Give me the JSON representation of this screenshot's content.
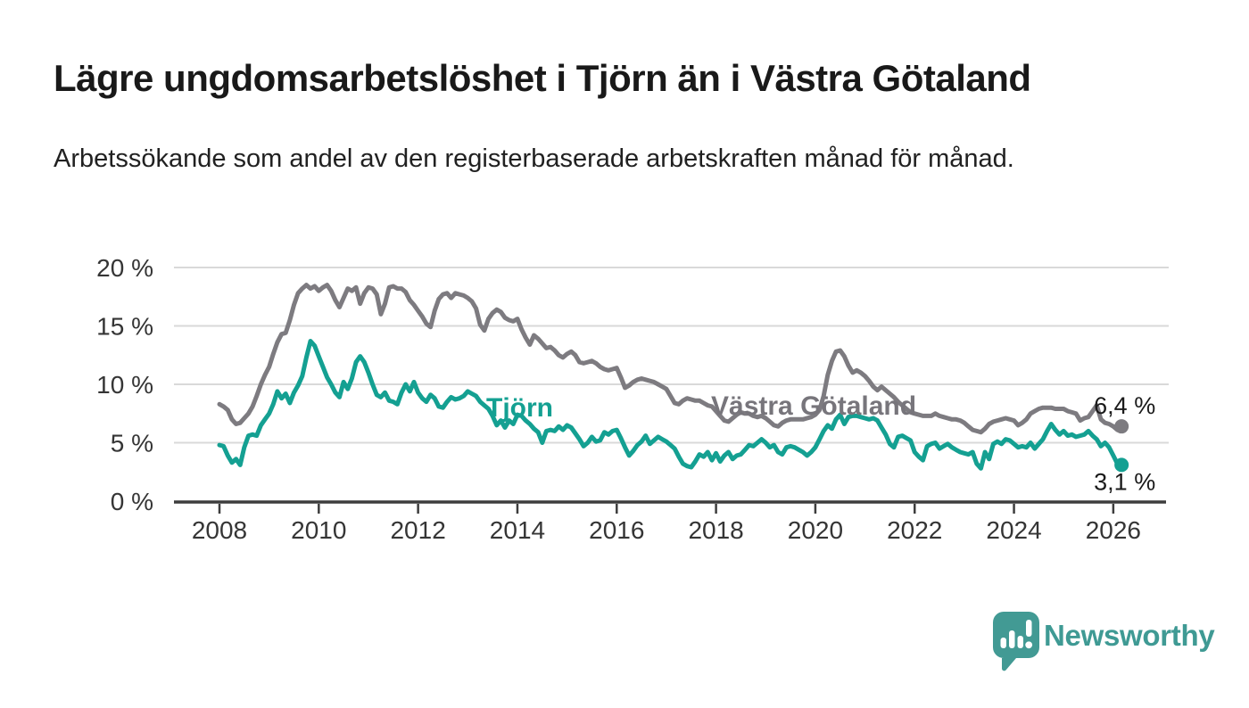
{
  "header": {
    "title": "Lägre ungdomsarbetslöshet i Tjörn än i Västra Götaland",
    "subtitle": "Arbetssökande som andel av den registerbaserade arbetskraften månad för månad."
  },
  "chart_data": {
    "type": "line",
    "title": "Lägre ungdomsarbetslöshet i Tjörn än i Västra Götaland",
    "subtitle": "Arbetssökande som andel av den registerbaserade arbetskraften månad för månad.",
    "unit": "%",
    "x_start": "2008-01",
    "x_end": "2026-03",
    "x_frequency": "monthly",
    "x_tick_labels": [
      "2008",
      "2010",
      "2012",
      "2014",
      "2016",
      "2018",
      "2020",
      "2022",
      "2024",
      "2026"
    ],
    "y_tick_labels": [
      "0 %",
      "5 %",
      "10 %",
      "15 %",
      "20 %"
    ],
    "ylim": [
      0,
      20
    ],
    "grid": true,
    "legend_position": "inline",
    "colors": {
      "tjorn": "#14a092",
      "vastra_gotaland": "#7d7b80",
      "vastra_gotaland_label": "#77757b",
      "gridline": "#d9d9d9",
      "axis": "#3d3d3d"
    },
    "series": [
      {
        "name": "Västra Götaland",
        "color": "#7d7b80",
        "label_color": "#77757b",
        "end_label": "6,4 %",
        "end_value": 6.4,
        "values": [
          8.3,
          8.1,
          7.8,
          7.0,
          6.6,
          6.7,
          7.1,
          7.5,
          8.1,
          9.0,
          10.0,
          10.8,
          11.5,
          12.6,
          13.6,
          14.3,
          14.4,
          15.5,
          16.8,
          17.8,
          18.2,
          18.5,
          18.2,
          18.4,
          18.0,
          18.3,
          18.5,
          18.0,
          17.2,
          16.6,
          17.4,
          18.2,
          18.0,
          18.3,
          16.9,
          17.8,
          18.3,
          18.2,
          17.7,
          16.0,
          16.9,
          18.3,
          18.4,
          18.2,
          18.2,
          17.9,
          17.2,
          16.8,
          16.3,
          15.8,
          15.2,
          14.9,
          16.3,
          17.3,
          17.7,
          17.8,
          17.4,
          17.8,
          17.7,
          17.6,
          17.4,
          17.1,
          16.5,
          15.1,
          14.6,
          15.6,
          16.1,
          16.4,
          16.2,
          15.7,
          15.5,
          15.4,
          15.6,
          14.7,
          14.0,
          13.4,
          14.2,
          13.9,
          13.5,
          13.1,
          13.2,
          12.9,
          12.5,
          12.3,
          12.6,
          12.8,
          12.5,
          11.9,
          11.8,
          11.9,
          12.0,
          11.8,
          11.5,
          11.3,
          11.2,
          11.3,
          11.4,
          10.6,
          9.7,
          9.9,
          10.2,
          10.4,
          10.5,
          10.4,
          10.3,
          10.2,
          10.0,
          9.8,
          9.6,
          9.0,
          8.4,
          8.3,
          8.6,
          8.8,
          8.7,
          8.6,
          8.6,
          8.4,
          8.2,
          8.1,
          7.7,
          7.3,
          6.9,
          6.8,
          7.1,
          7.4,
          7.6,
          7.5,
          7.5,
          7.3,
          7.2,
          7.3,
          7.1,
          6.8,
          6.5,
          6.4,
          6.7,
          6.9,
          7.0,
          7.0,
          7.0,
          7.0,
          7.1,
          7.2,
          7.4,
          7.8,
          9.0,
          10.8,
          12.0,
          12.8,
          12.9,
          12.4,
          11.6,
          11.0,
          11.2,
          11.0,
          10.7,
          10.3,
          9.8,
          9.5,
          9.8,
          9.5,
          9.2,
          8.9,
          8.5,
          8.2,
          7.9,
          7.6,
          7.5,
          7.4,
          7.3,
          7.3,
          7.3,
          7.5,
          7.3,
          7.2,
          7.1,
          7.0,
          7.0,
          6.9,
          6.7,
          6.4,
          6.1,
          6.0,
          5.9,
          6.2,
          6.6,
          6.8,
          6.9,
          7.0,
          7.1,
          7.0,
          6.9,
          6.5,
          6.7,
          7.0,
          7.5,
          7.7,
          7.9,
          8.0,
          8.0,
          8.0,
          7.9,
          7.9,
          7.9,
          7.7,
          7.6,
          7.5,
          6.9,
          7.1,
          7.2,
          7.7,
          8.2,
          7.0,
          6.7,
          6.6,
          6.4,
          6.1,
          6.4
        ]
      },
      {
        "name": "Tjörn",
        "color": "#14a092",
        "label_color": "#14a092",
        "end_label": "3,1 %",
        "end_value": 3.1,
        "values": [
          4.8,
          4.7,
          3.9,
          3.3,
          3.6,
          3.1,
          4.6,
          5.6,
          5.7,
          5.6,
          6.5,
          7.0,
          7.5,
          8.3,
          9.4,
          8.8,
          9.2,
          8.4,
          9.3,
          9.9,
          10.7,
          12.3,
          13.7,
          13.3,
          12.4,
          11.5,
          10.6,
          10.0,
          9.3,
          8.9,
          10.2,
          9.6,
          10.5,
          11.9,
          12.4,
          11.9,
          11.0,
          10.0,
          9.1,
          8.9,
          9.3,
          8.6,
          8.5,
          8.3,
          9.3,
          10.0,
          9.4,
          10.2,
          9.3,
          8.8,
          8.5,
          9.1,
          8.8,
          8.1,
          8.0,
          8.5,
          8.9,
          8.7,
          8.8,
          9.0,
          9.4,
          9.2,
          9.0,
          8.5,
          8.2,
          7.9,
          7.3,
          6.5,
          6.9,
          6.3,
          6.9,
          6.6,
          7.4,
          7.3,
          6.9,
          6.6,
          6.2,
          5.9,
          5.0,
          6.0,
          6.1,
          6.0,
          6.4,
          6.1,
          6.5,
          6.3,
          5.8,
          5.3,
          4.7,
          5.0,
          5.5,
          5.1,
          5.2,
          5.9,
          5.7,
          6.0,
          6.1,
          5.4,
          4.6,
          3.9,
          4.3,
          4.8,
          5.1,
          5.6,
          4.9,
          5.2,
          5.5,
          5.3,
          5.1,
          4.8,
          4.5,
          3.8,
          3.2,
          3.0,
          2.9,
          3.4,
          4.0,
          3.8,
          4.2,
          3.5,
          4.1,
          3.4,
          3.9,
          4.2,
          3.6,
          3.9,
          4.0,
          4.4,
          4.8,
          4.7,
          5.0,
          5.3,
          5.0,
          4.6,
          4.8,
          4.2,
          4.0,
          4.6,
          4.7,
          4.6,
          4.4,
          4.2,
          3.9,
          4.2,
          4.6,
          5.3,
          6.0,
          6.5,
          6.2,
          7.0,
          7.4,
          6.6,
          7.2,
          7.3,
          7.3,
          7.2,
          7.1,
          7.0,
          7.1,
          6.9,
          6.3,
          5.7,
          4.9,
          4.6,
          5.5,
          5.6,
          5.4,
          5.2,
          4.2,
          3.8,
          3.5,
          4.7,
          4.9,
          5.0,
          4.5,
          4.7,
          4.9,
          4.6,
          4.4,
          4.2,
          4.1,
          4.0,
          4.2,
          3.2,
          2.8,
          4.2,
          3.6,
          4.9,
          5.1,
          4.9,
          5.3,
          5.2,
          4.9,
          4.6,
          4.7,
          4.6,
          5.0,
          4.5,
          4.9,
          5.3,
          6.0,
          6.6,
          6.1,
          5.7,
          6.0,
          5.6,
          5.7,
          5.5,
          5.6,
          5.7,
          6.0,
          5.6,
          5.3,
          4.7,
          5.0,
          4.6,
          3.9,
          3.2,
          3.1
        ]
      }
    ]
  },
  "branding": {
    "logo_text": "Newsworthy",
    "logo_color": "#3f9a94",
    "logo_icon": "speech-bubble-bar-chart-icon"
  }
}
